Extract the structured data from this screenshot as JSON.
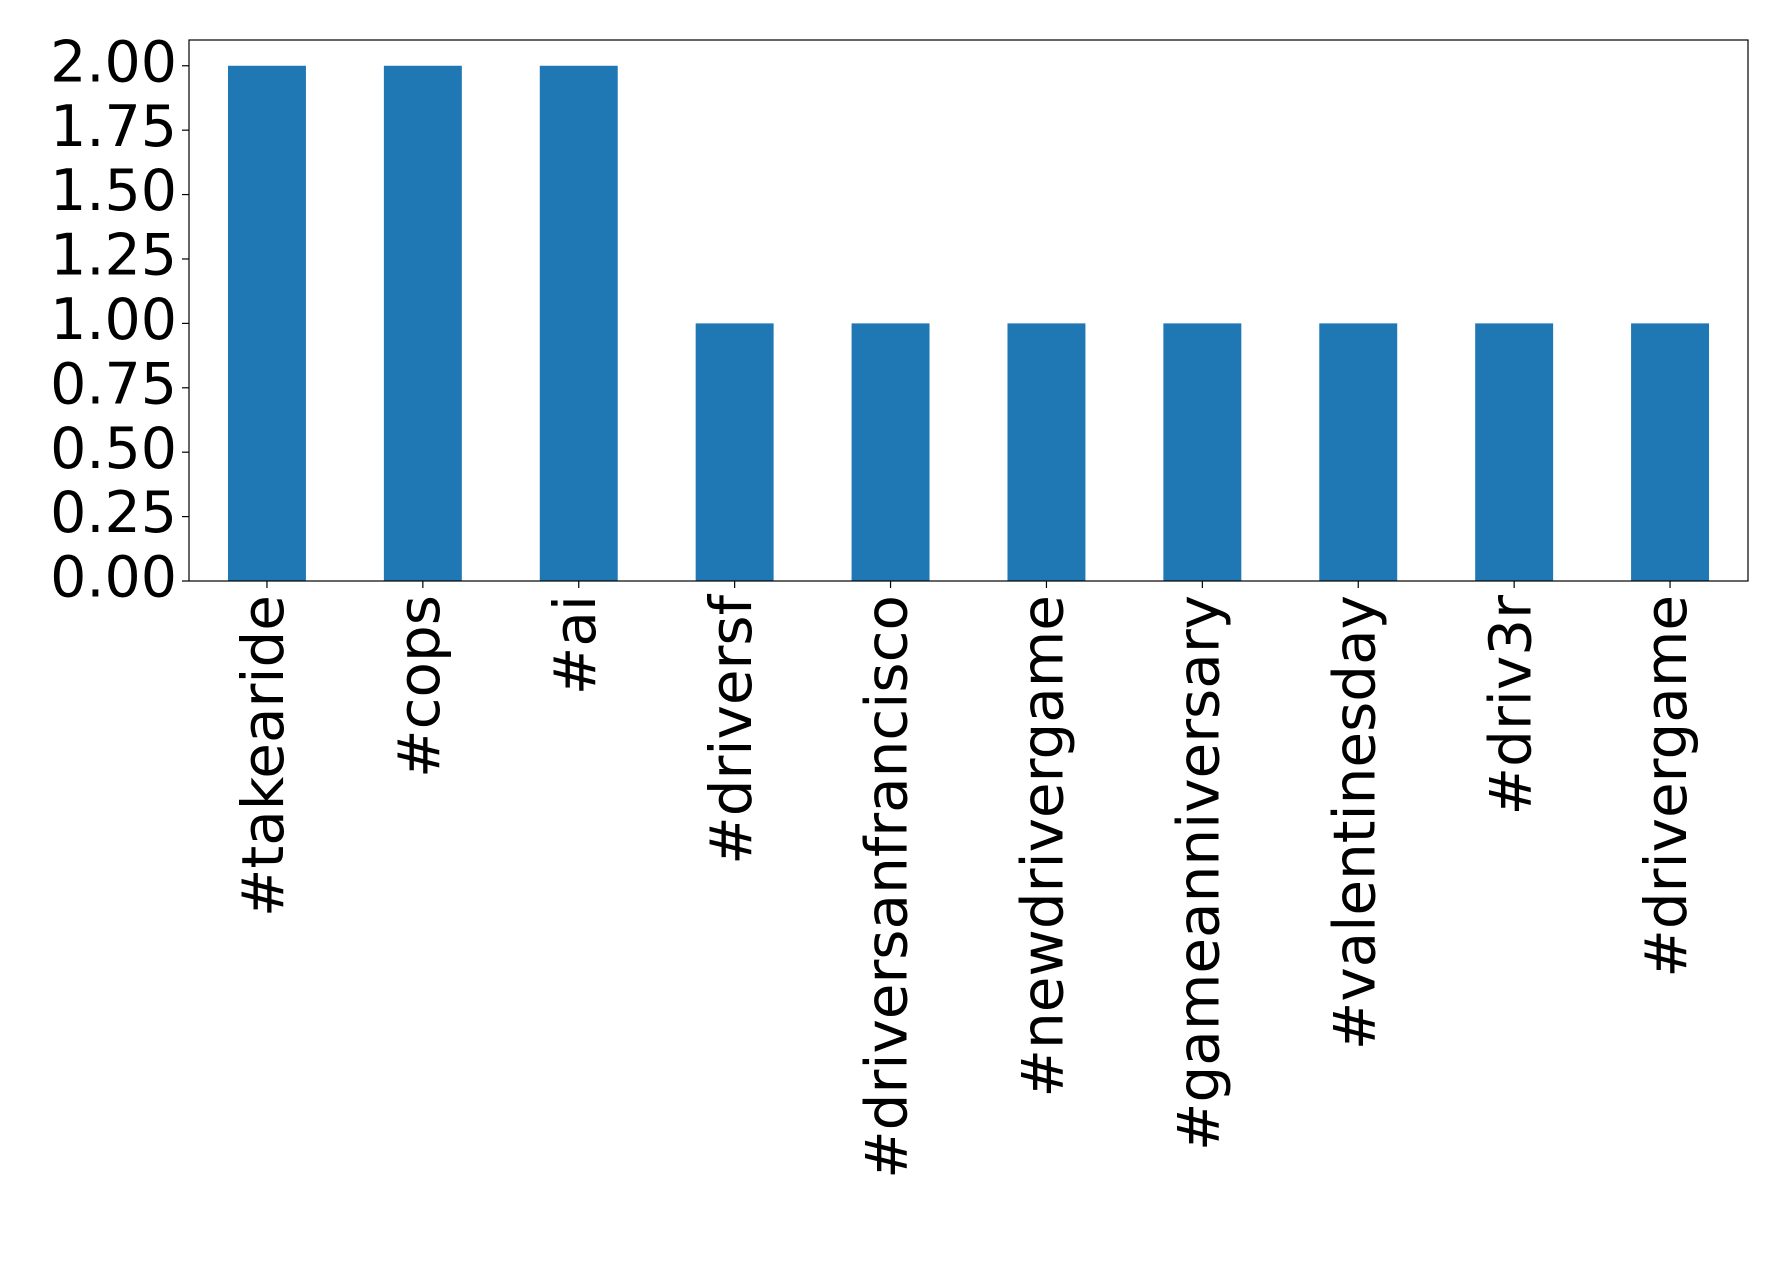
{
  "chart_data": {
    "type": "bar",
    "categories": [
      "#takearide",
      "#cops",
      "#ai",
      "#driversf",
      "#driversanfrancisco",
      "#newdrivergame",
      "#gameanniversary",
      "#valentinesday",
      "#driv3r",
      "#drivergame"
    ],
    "values": [
      2,
      2,
      2,
      1,
      1,
      1,
      1,
      1,
      1,
      1
    ],
    "color": "#1f77b4",
    "ylim": [
      0,
      2.1
    ],
    "yticks": [
      {
        "value": 0,
        "label": "0.00"
      },
      {
        "value": 0.25,
        "label": "0.25"
      },
      {
        "value": 0.5,
        "label": "0.50"
      },
      {
        "value": 0.75,
        "label": "0.75"
      },
      {
        "value": 1,
        "label": "1.00"
      },
      {
        "value": 1.25,
        "label": "1.25"
      },
      {
        "value": 1.5,
        "label": "1.50"
      },
      {
        "value": 1.75,
        "label": "1.75"
      },
      {
        "value": 2,
        "label": "2.00"
      }
    ],
    "grid": false
  }
}
